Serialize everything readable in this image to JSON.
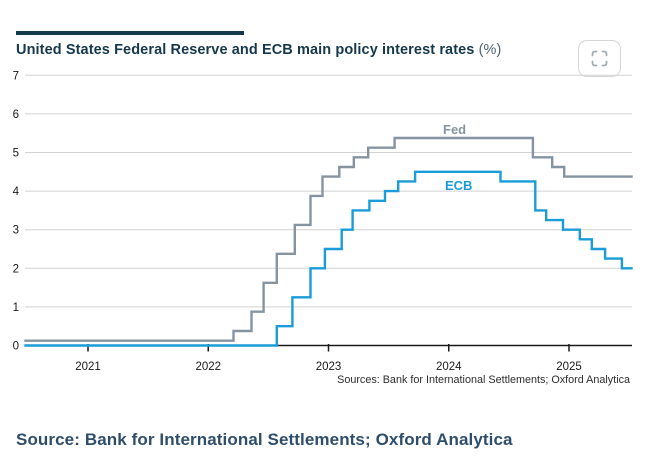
{
  "header": {
    "title": "United States Federal Reserve and ECB main policy interest rates",
    "title_suffix": " (%)",
    "expand_button": "fullscreen-expand-icon"
  },
  "colors": {
    "accent_navy": "#16384c",
    "title_text": "#16384c",
    "title_suffix_text": "#4e6374",
    "fed_line": "#8694a2",
    "ecb_line": "#1a9cd8",
    "gridline": "#d2d2d2",
    "axis": "#1a1a1a",
    "tick_label": "#1a1a1a",
    "sources_text": "#2d2d2d",
    "caption_text": "#2f4e6b",
    "button_border": "#d3d7d9",
    "button_glyph": "#a3adb3"
  },
  "chart_data": {
    "type": "line",
    "subtype": "step-after",
    "title": "United States Federal Reserve and ECB main policy interest rates (%)",
    "xlabel": "",
    "ylabel": "",
    "ylim": [
      0,
      7
    ],
    "y_ticks": [
      0,
      1,
      2,
      3,
      4,
      5,
      6,
      7
    ],
    "x_tick_years": [
      2021,
      2022,
      2023,
      2024,
      2025
    ],
    "x_domain": [
      2020.47,
      2025.53
    ],
    "grid": "horizontal-only",
    "legend_position": "inline-labels",
    "series": [
      {
        "name": "Fed",
        "color": "#8694a2",
        "start": {
          "t": 2020.47,
          "v": 0.125
        },
        "steps": [
          [
            2022.21,
            0.375
          ],
          [
            2022.36,
            0.875
          ],
          [
            2022.46,
            1.625
          ],
          [
            2022.57,
            2.375
          ],
          [
            2022.72,
            3.125
          ],
          [
            2022.85,
            3.875
          ],
          [
            2022.95,
            4.375
          ],
          [
            2023.09,
            4.625
          ],
          [
            2023.21,
            4.875
          ],
          [
            2023.33,
            5.125
          ],
          [
            2023.55,
            5.375
          ],
          [
            2024.7,
            4.875
          ],
          [
            2024.86,
            4.625
          ],
          [
            2024.96,
            4.375
          ]
        ],
        "end_t": 2025.53
      },
      {
        "name": "ECB",
        "color": "#1a9cd8",
        "start": {
          "t": 2020.47,
          "v": 0.0
        },
        "steps": [
          [
            2022.57,
            0.5
          ],
          [
            2022.7,
            1.25
          ],
          [
            2022.85,
            2.0
          ],
          [
            2022.97,
            2.5
          ],
          [
            2023.11,
            3.0
          ],
          [
            2023.2,
            3.5
          ],
          [
            2023.34,
            3.75
          ],
          [
            2023.47,
            4.0
          ],
          [
            2023.58,
            4.25
          ],
          [
            2023.72,
            4.5
          ],
          [
            2024.43,
            4.25
          ],
          [
            2024.72,
            3.5
          ],
          [
            2024.81,
            3.25
          ],
          [
            2024.95,
            3.0
          ],
          [
            2025.09,
            2.75
          ],
          [
            2025.19,
            2.5
          ],
          [
            2025.3,
            2.25
          ],
          [
            2025.44,
            2.0
          ]
        ],
        "end_t": 2025.53
      }
    ],
    "series_labels": [
      {
        "text": "Fed",
        "color": "#8694a2"
      },
      {
        "text": "ECB",
        "color": "#1a9cd8"
      }
    ],
    "sources_note": "Sources: Bank for International Settlements; Oxford Analytica"
  },
  "footer": {
    "caption": "Source: Bank for International Settlements; Oxford Analytica"
  }
}
